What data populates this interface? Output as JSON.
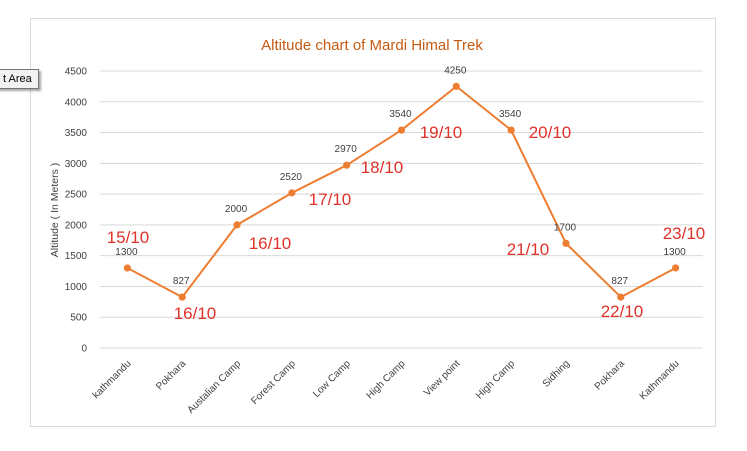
{
  "tooltip": "t Area",
  "chart_data": {
    "type": "line",
    "title": "Altitude chart of Mardi Himal Trek",
    "xlabel": "",
    "ylabel": "Altitude ( In Meters )",
    "ylim": [
      0,
      4500
    ],
    "yticks": [
      0,
      500,
      1000,
      1500,
      2000,
      2500,
      3000,
      3500,
      4000,
      4500
    ],
    "grid": true,
    "categories": [
      "kathmandu",
      "Pokhara",
      "Austalian Camp",
      "Forest Camp",
      "Low Camp",
      "High Camp",
      "View point",
      "High Camp",
      "Sidhing",
      "Pokhara",
      "Kathmandu"
    ],
    "series": [
      {
        "values": [
          1300,
          827,
          2000,
          2520,
          2970,
          3540,
          4250,
          3540,
          1700,
          827,
          1300
        ]
      }
    ],
    "data_labels": [
      "1300",
      "827",
      "2000",
      "2520",
      "2970",
      "3540",
      "4250",
      "3540",
      "1700",
      "827",
      "1300"
    ],
    "annotations": [
      "15/10",
      "16/10",
      "16/10",
      "17/10",
      "18/10",
      "19/10",
      "20/10",
      "21/10",
      "22/10",
      "23/10"
    ],
    "colors": {
      "line": "#ed7d31",
      "title": "#c55a11",
      "annotation": "#e0322a",
      "grid": "#d9d9d9"
    }
  }
}
